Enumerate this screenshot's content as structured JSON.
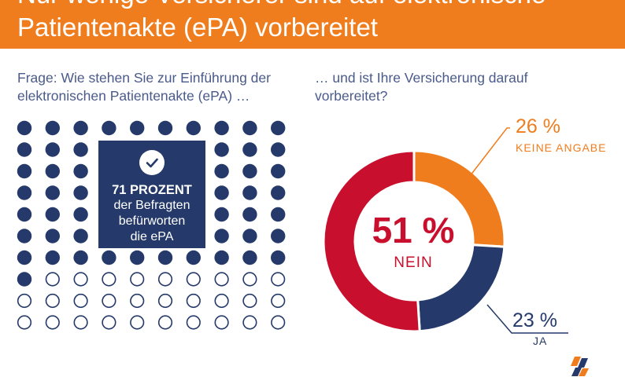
{
  "header": {
    "title": "Nur wenige Versicherer sind auf elektronische\nPatientenakte (ePA) vorbereitet"
  },
  "left": {
    "question": "Frage: Wie stehen Sie zur Einführung der elektronischen Patientenakte (ePA)  …",
    "box": {
      "headline": "71 PROZENT",
      "line1": "der Befragten",
      "line2": "befürworten",
      "line3": "die ePA",
      "icon": "check-icon"
    }
  },
  "right": {
    "question": "… und ist Ihre Versicherung darauf vorbereitet?",
    "center_value": "51 %",
    "center_label": "NEIN",
    "keine_angabe": {
      "value": "26 %",
      "label": "KEINE ANGABE"
    },
    "ja": {
      "value": "23 %",
      "label": "JA"
    }
  },
  "colors": {
    "orange": "#f07d1d",
    "navy": "#253a6a",
    "red": "#c8102e",
    "text": "#4a5a8a"
  },
  "chart_data": [
    {
      "type": "pie",
      "chart_kind": "donut",
      "slices": [
        {
          "label": "KEINE ANGABE",
          "value": 26,
          "color": "#f07d1d"
        },
        {
          "label": "JA",
          "value": 23,
          "color": "#253a6a"
        },
        {
          "label": "NEIN",
          "value": 51,
          "color": "#c8102e"
        }
      ],
      "units": "%"
    },
    {
      "type": "waffle",
      "total": 100,
      "filled": 71,
      "filled_color": "#253a6a",
      "empty_style": "outline"
    }
  ]
}
